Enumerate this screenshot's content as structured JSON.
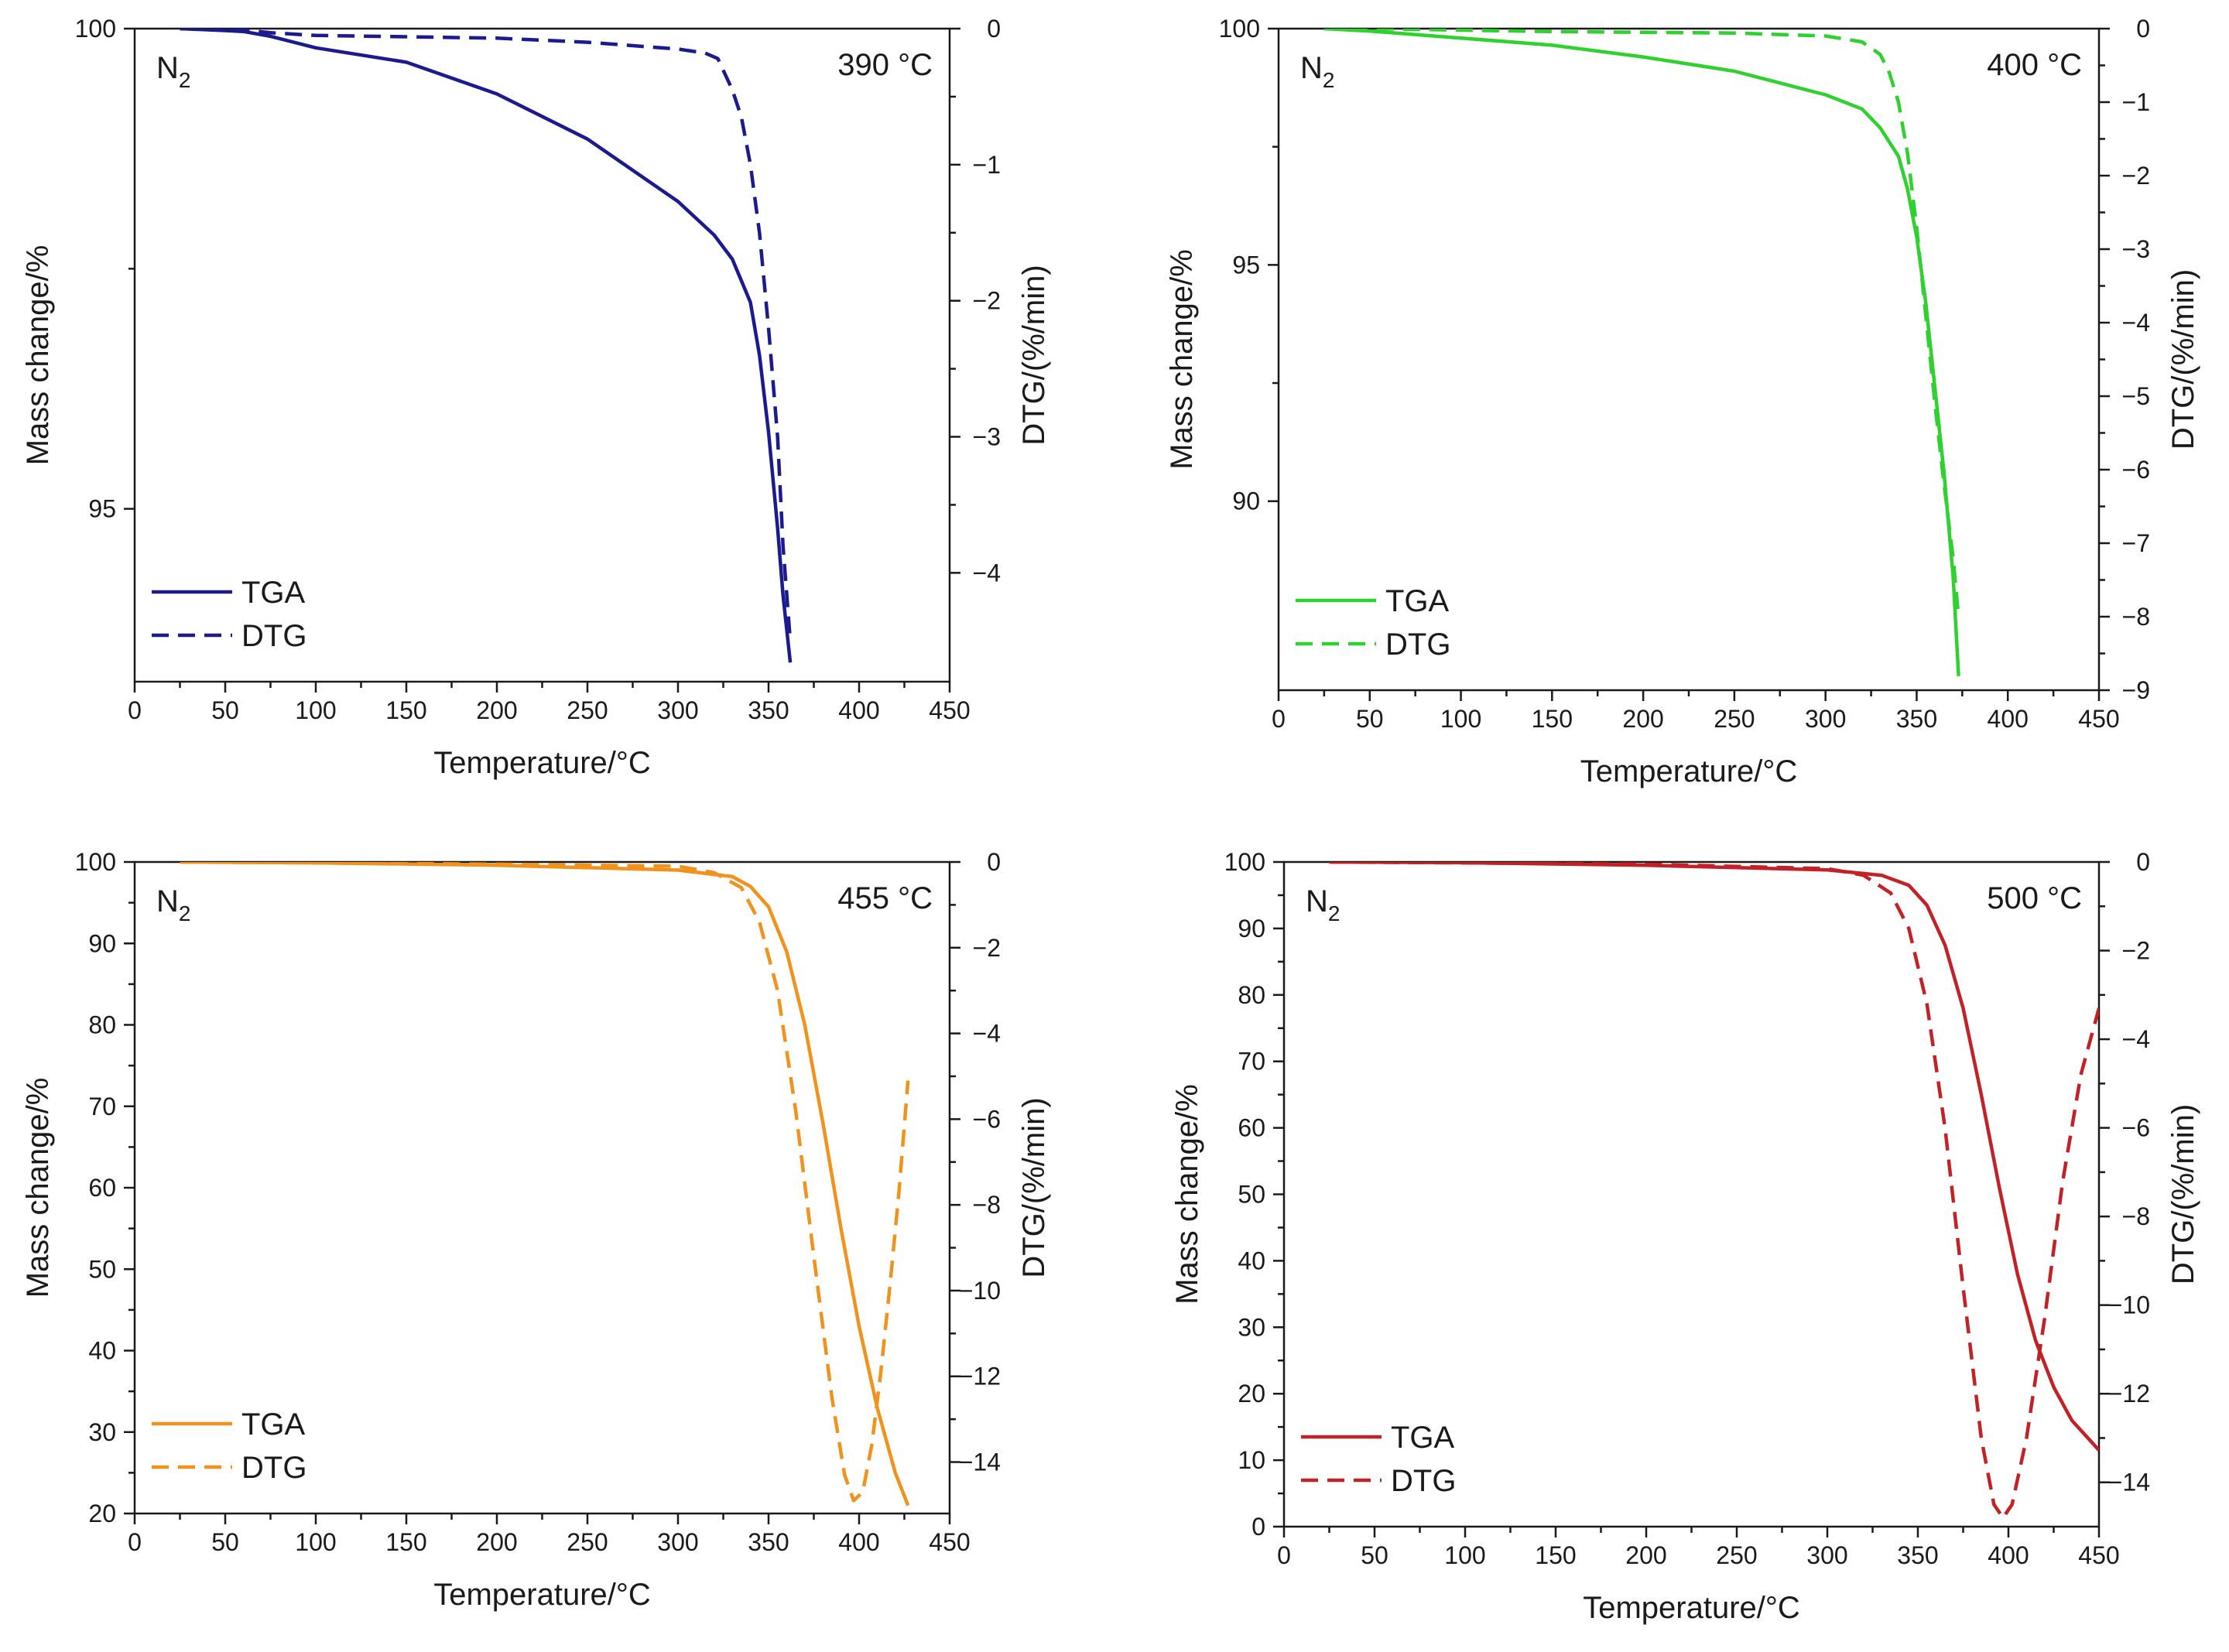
{
  "chart_data": [
    {
      "type": "line",
      "panel": "top-left",
      "temperature_label": "390 °C",
      "atmosphere": "N",
      "atmosphere_sub": "2",
      "color": "#1b1b8f",
      "xlabel": "Temperature/°C",
      "ylabel": "Mass change/%",
      "y2label": "DTG/(%/min)",
      "xlim": [
        0,
        450
      ],
      "ylim": [
        93.2,
        100
      ],
      "y2lim": [
        -4.8,
        0
      ],
      "xticks": [
        0,
        50,
        100,
        150,
        200,
        250,
        300,
        350,
        400,
        450
      ],
      "yticks": [
        95,
        100
      ],
      "y2ticks": [
        0,
        -1,
        -2,
        -3,
        -4
      ],
      "legend_position": "bottom-left",
      "series": [
        {
          "name": "TGA",
          "axis": "left",
          "style": "solid",
          "x": [
            25,
            50,
            60,
            75,
            100,
            150,
            200,
            250,
            300,
            320,
            330,
            340,
            345,
            350,
            355,
            358,
            362
          ],
          "y": [
            100,
            99.98,
            99.97,
            99.92,
            99.8,
            99.65,
            99.32,
            98.85,
            98.2,
            97.85,
            97.6,
            97.15,
            96.6,
            95.8,
            94.8,
            94.1,
            93.4
          ]
        },
        {
          "name": "DTG",
          "axis": "right",
          "style": "dashed",
          "x": [
            25,
            50,
            60,
            75,
            100,
            150,
            200,
            250,
            300,
            315,
            322,
            330,
            335,
            340,
            345,
            350,
            355,
            358,
            362
          ],
          "y": [
            0,
            0,
            -0.01,
            -0.03,
            -0.05,
            -0.06,
            -0.07,
            -0.1,
            -0.15,
            -0.18,
            -0.22,
            -0.45,
            -0.65,
            -1.0,
            -1.5,
            -2.2,
            -3.0,
            -3.8,
            -4.5
          ]
        }
      ]
    },
    {
      "type": "line",
      "panel": "top-right",
      "temperature_label": "400 °C",
      "atmosphere": "N",
      "atmosphere_sub": "2",
      "color": "#2ed12e",
      "xlabel": "Temperature/°C",
      "ylabel": "Mass change/%",
      "y2label": "DTG/(%/min)",
      "xlim": [
        0,
        450
      ],
      "ylim": [
        86,
        100
      ],
      "y2lim": [
        -9,
        0
      ],
      "xticks": [
        0,
        50,
        100,
        150,
        200,
        250,
        300,
        350,
        400,
        450
      ],
      "yticks": [
        90,
        95,
        100
      ],
      "y2ticks": [
        0,
        -1,
        -2,
        -3,
        -4,
        -5,
        -6,
        -7,
        -8,
        -9
      ],
      "legend_position": "bottom-left",
      "series": [
        {
          "name": "TGA",
          "axis": "left",
          "style": "solid",
          "x": [
            25,
            50,
            100,
            150,
            200,
            250,
            300,
            320,
            330,
            340,
            345,
            350,
            355,
            360,
            365,
            370,
            373
          ],
          "y": [
            100,
            99.95,
            99.8,
            99.65,
            99.4,
            99.1,
            98.6,
            98.3,
            97.9,
            97.3,
            96.6,
            95.6,
            94.2,
            92.4,
            90.6,
            88.4,
            86.3
          ]
        },
        {
          "name": "DTG",
          "axis": "right",
          "style": "dashed",
          "x": [
            25,
            50,
            100,
            150,
            200,
            250,
            300,
            320,
            330,
            335,
            340,
            345,
            350,
            355,
            360,
            365,
            370,
            373
          ],
          "y": [
            0,
            0,
            -0.02,
            -0.04,
            -0.05,
            -0.06,
            -0.1,
            -0.18,
            -0.35,
            -0.6,
            -1.0,
            -1.7,
            -2.7,
            -3.9,
            -5.1,
            -6.2,
            -7.2,
            -8.0
          ]
        }
      ]
    },
    {
      "type": "line",
      "panel": "bottom-left",
      "temperature_label": "455 °C",
      "atmosphere": "N",
      "atmosphere_sub": "2",
      "color": "#f0921c",
      "xlabel": "Temperature/°C",
      "ylabel": "Mass change/%",
      "y2label": "DTG/(%/min)",
      "xlim": [
        0,
        450
      ],
      "ylim": [
        20,
        100
      ],
      "y2lim": [
        -15.2,
        0
      ],
      "xticks": [
        0,
        50,
        100,
        150,
        200,
        250,
        300,
        350,
        400,
        450
      ],
      "yticks": [
        20,
        30,
        40,
        50,
        60,
        70,
        80,
        90,
        100
      ],
      "y2ticks": [
        0,
        -2,
        -4,
        -6,
        -8,
        -10,
        -12,
        -14
      ],
      "legend_position": "bottom-left",
      "series": [
        {
          "name": "TGA",
          "axis": "left",
          "style": "solid",
          "x": [
            25,
            100,
            200,
            300,
            330,
            340,
            350,
            360,
            370,
            380,
            390,
            400,
            410,
            420,
            427
          ],
          "y": [
            100,
            99.9,
            99.6,
            99,
            98.2,
            97,
            94.5,
            89,
            80,
            68,
            55,
            43,
            33,
            25,
            21
          ]
        },
        {
          "name": "DTG",
          "axis": "right",
          "style": "dashed",
          "x": [
            25,
            100,
            200,
            300,
            320,
            335,
            345,
            355,
            365,
            375,
            385,
            392,
            397,
            402,
            407,
            412,
            417,
            422,
            427
          ],
          "y": [
            0,
            -0.02,
            -0.05,
            -0.1,
            -0.25,
            -0.6,
            -1.4,
            -3.0,
            -5.8,
            -9.2,
            -12.5,
            -14.3,
            -14.9,
            -14.7,
            -13.6,
            -11.9,
            -9.9,
            -7.7,
            -5.1
          ]
        }
      ]
    },
    {
      "type": "line",
      "panel": "bottom-right",
      "temperature_label": "500 °C",
      "atmosphere": "N",
      "atmosphere_sub": "2",
      "color": "#c42127",
      "xlabel": "Temperature/°C",
      "ylabel": "Mass change/%",
      "y2label": "DTG/(%/min)",
      "xlim": [
        0,
        450
      ],
      "ylim": [
        0,
        100
      ],
      "y2lim": [
        -15,
        0
      ],
      "xticks": [
        0,
        50,
        100,
        150,
        200,
        250,
        300,
        350,
        400,
        450
      ],
      "yticks": [
        0,
        10,
        20,
        30,
        40,
        50,
        60,
        70,
        80,
        90,
        100
      ],
      "y2ticks": [
        0,
        -2,
        -4,
        -6,
        -8,
        -10,
        -12,
        -14
      ],
      "legend_position": "bottom-left",
      "series": [
        {
          "name": "TGA",
          "axis": "left",
          "style": "solid",
          "x": [
            25,
            100,
            200,
            300,
            330,
            345,
            355,
            365,
            375,
            385,
            395,
            405,
            415,
            425,
            435,
            445,
            450
          ],
          "y": [
            100,
            99.9,
            99.5,
            98.8,
            98,
            96.5,
            93.5,
            87.5,
            78,
            65,
            51,
            38,
            28,
            21,
            16,
            13,
            11.5
          ]
        },
        {
          "name": "DTG",
          "axis": "right",
          "style": "dashed",
          "x": [
            25,
            100,
            200,
            300,
            320,
            335,
            345,
            355,
            365,
            375,
            385,
            392,
            397,
            402,
            410,
            420,
            430,
            440,
            450
          ],
          "y": [
            0,
            -0.02,
            -0.05,
            -0.15,
            -0.3,
            -0.7,
            -1.5,
            -3.2,
            -6.0,
            -9.6,
            -13.0,
            -14.5,
            -14.8,
            -14.5,
            -13.0,
            -10.3,
            -7.2,
            -4.8,
            -3.3
          ]
        }
      ]
    }
  ]
}
